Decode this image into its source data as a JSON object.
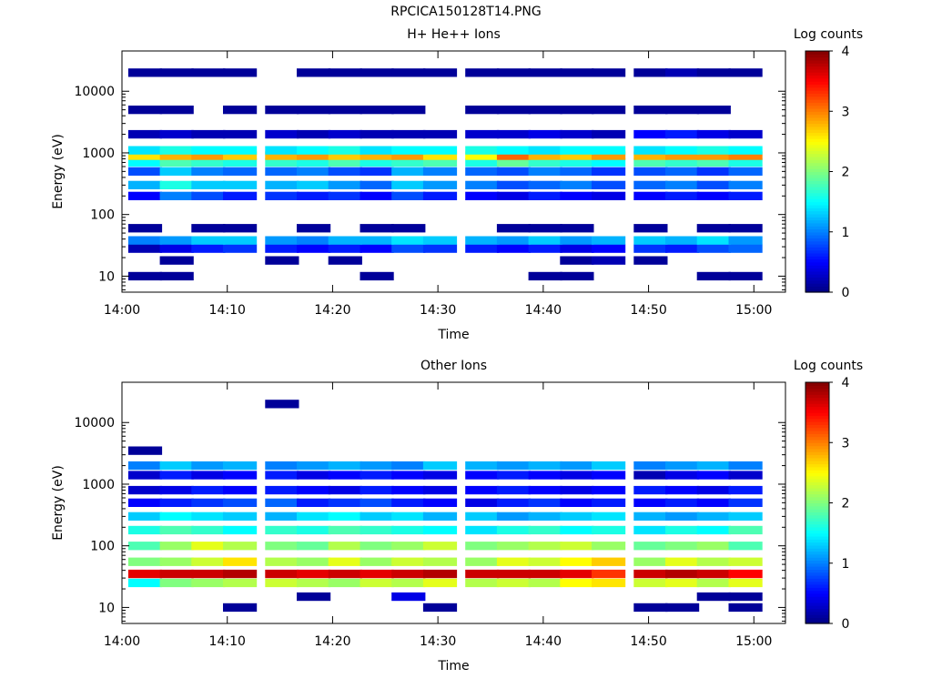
{
  "figure_title": "RPCICA150128T14.PNG",
  "chart_data": [
    {
      "type": "heatmap",
      "title": "H+ He++ Ions",
      "xlabel": "Time",
      "ylabel": "Energy (eV)",
      "y_scale": "log",
      "y_range": [
        5.5,
        45000
      ],
      "x_range": [
        "14:00",
        "15:03"
      ],
      "x_ticks": [
        "14:00",
        "14:10",
        "14:20",
        "14:30",
        "14:40",
        "14:50",
        "15:00"
      ],
      "y_ticks": [
        "10",
        "100",
        "1000",
        "10000"
      ],
      "colorbar": {
        "label": "Log counts",
        "ticks": [
          "0",
          "1",
          "2",
          "3",
          "4"
        ],
        "range": [
          0,
          4
        ],
        "colormap": "jet"
      },
      "grid": false,
      "time_columns": [
        "14:02",
        "14:05",
        "14:08",
        "14:11",
        "14:15",
        "14:18",
        "14:21",
        "14:24",
        "14:27",
        "14:30",
        "14:34",
        "14:37",
        "14:40",
        "14:43",
        "14:46",
        "14:50",
        "14:53",
        "14:56",
        "14:59"
      ],
      "bands": [
        {
          "energy_eV": 10,
          "values": [
            0.1,
            0.1,
            null,
            null,
            null,
            null,
            null,
            0.1,
            null,
            null,
            null,
            null,
            0.1,
            0.1,
            null,
            null,
            null,
            0.1,
            0.1
          ]
        },
        {
          "energy_eV": 18,
          "values": [
            null,
            0.1,
            null,
            null,
            0.1,
            null,
            0.1,
            null,
            null,
            null,
            null,
            null,
            null,
            0.1,
            0.2,
            0.1,
            null,
            null,
            null
          ]
        },
        {
          "energy_eV": 28,
          "values": [
            0.2,
            0.4,
            0.6,
            0.7,
            0.6,
            0.5,
            0.6,
            0.5,
            0.8,
            0.7,
            0.6,
            0.5,
            0.6,
            0.4,
            0.5,
            0.7,
            0.6,
            0.8,
            0.9
          ]
        },
        {
          "energy_eV": 38,
          "values": [
            1.0,
            1.1,
            1.3,
            1.3,
            1.1,
            1.0,
            1.2,
            1.2,
            1.4,
            1.3,
            1.2,
            1.1,
            1.3,
            1.1,
            1.2,
            1.3,
            1.2,
            1.4,
            1.1
          ]
        },
        {
          "energy_eV": 60,
          "values": [
            0.1,
            null,
            0.1,
            0.1,
            null,
            0.1,
            null,
            0.1,
            0.1,
            null,
            null,
            0.1,
            0.1,
            0.1,
            null,
            0.1,
            null,
            0.1,
            0.1
          ]
        },
        {
          "energy_eV": 200,
          "values": [
            0.5,
            1.0,
            0.8,
            0.6,
            0.7,
            0.6,
            0.7,
            0.5,
            0.8,
            0.6,
            0.5,
            0.4,
            0.6,
            0.5,
            0.4,
            0.5,
            0.6,
            0.5,
            0.6
          ]
        },
        {
          "energy_eV": 300,
          "values": [
            1.2,
            1.6,
            1.3,
            1.3,
            1.2,
            1.3,
            1.1,
            0.9,
            1.3,
            1.1,
            1.0,
            0.8,
            0.9,
            1.0,
            0.8,
            0.9,
            1.0,
            0.8,
            1.0
          ]
        },
        {
          "energy_eV": 500,
          "values": [
            0.8,
            1.3,
            1.0,
            0.9,
            0.9,
            1.0,
            0.8,
            0.7,
            1.2,
            1.0,
            0.9,
            0.8,
            1.0,
            0.9,
            0.7,
            0.8,
            0.9,
            0.7,
            0.9
          ]
        },
        {
          "energy_eV": 700,
          "values": [
            1.5,
            1.8,
            1.7,
            1.6,
            1.7,
            1.6,
            1.8,
            1.6,
            1.7,
            1.8,
            1.6,
            1.9,
            1.7,
            1.6,
            1.5,
            1.8,
            1.7,
            1.8,
            1.6
          ]
        },
        {
          "energy_eV": 900,
          "values": [
            2.6,
            2.8,
            2.9,
            2.7,
            2.8,
            2.9,
            2.7,
            2.8,
            2.9,
            2.6,
            2.5,
            3.1,
            2.8,
            2.7,
            2.9,
            2.8,
            2.9,
            2.9,
            3.0
          ]
        },
        {
          "energy_eV": 1100,
          "values": [
            1.4,
            1.6,
            1.5,
            1.5,
            1.4,
            1.5,
            1.6,
            1.4,
            1.5,
            1.5,
            1.6,
            1.5,
            1.4,
            1.5,
            1.5,
            1.4,
            1.5,
            1.6,
            1.5
          ]
        },
        {
          "energy_eV": 2000,
          "values": [
            0.2,
            0.3,
            0.2,
            0.2,
            0.3,
            0.2,
            0.3,
            0.2,
            0.2,
            0.2,
            0.3,
            0.3,
            0.4,
            0.3,
            0.2,
            0.5,
            0.6,
            0.4,
            0.3
          ]
        },
        {
          "energy_eV": 5000,
          "values": [
            0.1,
            0.1,
            null,
            0.1,
            0.1,
            0.1,
            0.1,
            0.1,
            0.1,
            null,
            0.1,
            0.1,
            0.1,
            0.1,
            0.1,
            0.1,
            0.1,
            0.1,
            null
          ]
        },
        {
          "energy_eV": 20000,
          "values": [
            0.1,
            0.1,
            0.1,
            0.1,
            null,
            0.1,
            0.1,
            0.1,
            0.1,
            0.1,
            0.1,
            0.1,
            0.1,
            0.1,
            0.1,
            0.1,
            0.2,
            0.1,
            0.1
          ]
        }
      ]
    },
    {
      "type": "heatmap",
      "title": "Other Ions",
      "xlabel": "Time",
      "ylabel": "Energy (eV)",
      "y_scale": "log",
      "y_range": [
        5.5,
        45000
      ],
      "x_range": [
        "14:00",
        "15:03"
      ],
      "x_ticks": [
        "14:00",
        "14:10",
        "14:20",
        "14:30",
        "14:40",
        "14:50",
        "15:00"
      ],
      "y_ticks": [
        "10",
        "100",
        "1000",
        "10000"
      ],
      "colorbar": {
        "label": "Log counts",
        "ticks": [
          "0",
          "1",
          "2",
          "3",
          "4"
        ],
        "range": [
          0,
          4
        ],
        "colormap": "jet"
      },
      "grid": false,
      "time_columns": [
        "14:02",
        "14:05",
        "14:08",
        "14:11",
        "14:15",
        "14:18",
        "14:21",
        "14:24",
        "14:27",
        "14:30",
        "14:34",
        "14:37",
        "14:40",
        "14:43",
        "14:46",
        "14:50",
        "14:53",
        "14:56",
        "14:59"
      ],
      "bands": [
        {
          "energy_eV": 10,
          "values": [
            null,
            null,
            null,
            0.1,
            null,
            null,
            null,
            null,
            null,
            0.1,
            null,
            null,
            null,
            null,
            null,
            0.1,
            0.1,
            null,
            0.1
          ]
        },
        {
          "energy_eV": 15,
          "values": [
            null,
            null,
            null,
            null,
            null,
            0.1,
            null,
            null,
            0.4,
            null,
            null,
            null,
            null,
            null,
            null,
            null,
            null,
            0.1,
            0.1
          ]
        },
        {
          "energy_eV": 25,
          "values": [
            1.5,
            2.0,
            2.1,
            2.2,
            2.3,
            2.2,
            2.1,
            2.3,
            2.2,
            2.4,
            2.2,
            2.3,
            2.2,
            2.5,
            2.6,
            2.3,
            2.4,
            2.2,
            2.4
          ]
        },
        {
          "energy_eV": 35,
          "values": [
            3.6,
            3.7,
            3.7,
            3.8,
            3.7,
            3.6,
            3.7,
            3.6,
            3.7,
            3.8,
            3.7,
            3.7,
            3.7,
            3.6,
            3.3,
            3.7,
            3.8,
            3.7,
            3.5
          ]
        },
        {
          "energy_eV": 55,
          "values": [
            2.0,
            2.1,
            2.3,
            2.6,
            2.2,
            2.1,
            2.4,
            2.1,
            2.3,
            2.2,
            2.1,
            2.4,
            2.3,
            2.5,
            2.7,
            2.1,
            2.4,
            2.2,
            2.3
          ]
        },
        {
          "energy_eV": 100,
          "values": [
            1.8,
            2.1,
            2.4,
            2.2,
            2.0,
            1.9,
            2.2,
            2.0,
            2.1,
            2.3,
            2.0,
            2.1,
            2.2,
            2.3,
            2.1,
            1.9,
            2.0,
            2.1,
            1.8
          ]
        },
        {
          "energy_eV": 180,
          "values": [
            1.6,
            1.8,
            1.7,
            1.5,
            1.7,
            1.6,
            1.8,
            1.7,
            1.6,
            1.5,
            1.4,
            1.6,
            1.7,
            1.5,
            1.6,
            1.4,
            1.6,
            1.5,
            1.8
          ]
        },
        {
          "energy_eV": 300,
          "values": [
            1.3,
            1.5,
            1.4,
            1.3,
            1.2,
            1.4,
            1.5,
            1.3,
            1.4,
            1.2,
            1.3,
            1.1,
            1.2,
            1.3,
            1.4,
            1.2,
            1.1,
            1.2,
            1.3
          ]
        },
        {
          "energy_eV": 500,
          "values": [
            0.5,
            0.6,
            0.7,
            0.8,
            0.9,
            0.6,
            0.7,
            0.8,
            0.6,
            0.5,
            0.4,
            0.6,
            0.7,
            0.5,
            0.6,
            0.5,
            0.6,
            0.5,
            0.7
          ]
        },
        {
          "energy_eV": 800,
          "values": [
            0.3,
            0.4,
            0.6,
            0.5,
            0.6,
            0.5,
            0.4,
            0.6,
            0.5,
            0.4,
            0.5,
            0.6,
            0.5,
            0.4,
            0.5,
            0.6,
            0.5,
            0.4,
            0.6
          ]
        },
        {
          "energy_eV": 1400,
          "values": [
            0.3,
            0.6,
            0.4,
            0.5,
            0.6,
            0.4,
            0.5,
            0.6,
            0.5,
            0.4,
            0.5,
            0.6,
            0.5,
            0.4,
            0.5,
            0.2,
            0.4,
            0.5,
            0.3
          ]
        },
        {
          "energy_eV": 2000,
          "values": [
            1.0,
            1.3,
            1.1,
            1.2,
            1.0,
            1.1,
            1.2,
            1.1,
            1.0,
            1.3,
            1.2,
            1.1,
            1.2,
            1.1,
            1.3,
            1.0,
            1.1,
            1.2,
            1.0
          ]
        },
        {
          "energy_eV": 3500,
          "values": [
            0.1,
            null,
            null,
            null,
            null,
            null,
            null,
            null,
            null,
            null,
            null,
            null,
            null,
            null,
            null,
            null,
            null,
            null,
            null
          ]
        },
        {
          "energy_eV": 20000,
          "values": [
            null,
            null,
            null,
            null,
            0.1,
            null,
            null,
            null,
            null,
            null,
            null,
            null,
            null,
            null,
            null,
            null,
            null,
            null,
            null
          ]
        }
      ]
    }
  ]
}
